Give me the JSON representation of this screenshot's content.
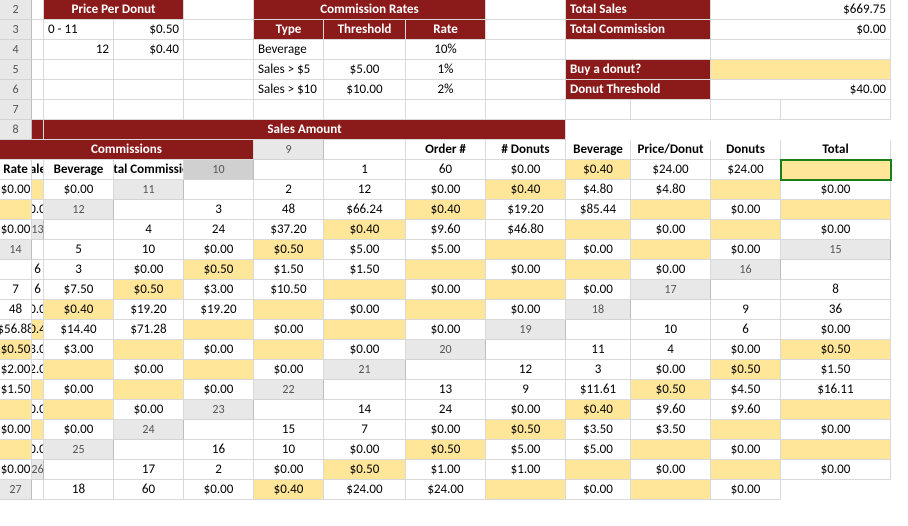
{
  "colors": {
    "headerBg": "#8b1a1a",
    "headerFg": "#ffffff",
    "highlight": "#ffe699",
    "rowHdrBg": "#e8e8e8",
    "rowHdrBorder": "#bdbdbd",
    "cellBorder": "#d9d9d9",
    "activeOutline": "#1a7f1a"
  },
  "rowNumbers": [
    2,
    3,
    4,
    5,
    6,
    7,
    8,
    9,
    10,
    11,
    12,
    13,
    14,
    15,
    16,
    17,
    18,
    19,
    20,
    21,
    22,
    23,
    24,
    25,
    26,
    27
  ],
  "activeRowIndex": 10,
  "pricePerDonut": {
    "title": "Price Per Donut",
    "rows": [
      {
        "range": "0 - 11",
        "price": "$0.50"
      },
      {
        "range": "12",
        "price": "$0.40"
      }
    ]
  },
  "commissionRates": {
    "title": "Commission Rates",
    "headers": {
      "type": "Type",
      "threshold": "Threshold",
      "rate": "Rate"
    },
    "rows": [
      {
        "type": "Beverage",
        "threshold": "",
        "rate": "10%"
      },
      {
        "type": "Sales > $5",
        "threshold": "$5.00",
        "rate": "1%"
      },
      {
        "type": "Sales > $10",
        "threshold": "$10.00",
        "rate": "2%"
      }
    ]
  },
  "summary": {
    "totalSalesLabel": "Total Sales",
    "totalSalesValue": "$669.75",
    "totalCommissionLabel": "Total Commission",
    "totalCommissionValue": "$0.00",
    "buyDonutLabel": "Buy a donut?",
    "donutThresholdLabel": "Donut Threshold",
    "donutThresholdValue": "$40.00"
  },
  "dataHeaders": {
    "salesAmount": "Sales Amount",
    "commissions": "Commissions",
    "order": "Order #",
    "donuts": "# Donuts",
    "beverage": "Beverage",
    "pricePer": "Price/Donut",
    "donutsAmt": "Donuts",
    "total": "Total",
    "rate": "Rate",
    "sales": "Sales",
    "bev2": "Beverage",
    "totComm": "Total Commission"
  },
  "dataRows": [
    {
      "o": "1",
      "d": "60",
      "bev": "$0.00",
      "pp": "$0.40",
      "da": "$24.00",
      "t": "$24.00",
      "r": "",
      "s": "$0.00",
      "b2": "",
      "tc": "$0.00"
    },
    {
      "o": "2",
      "d": "12",
      "bev": "$0.00",
      "pp": "$0.40",
      "da": "$4.80",
      "t": "$4.80",
      "r": "",
      "s": "$0.00",
      "b2": "",
      "tc": "$0.00"
    },
    {
      "o": "3",
      "d": "48",
      "bev": "$66.24",
      "pp": "$0.40",
      "da": "$19.20",
      "t": "$85.44",
      "r": "",
      "s": "$0.00",
      "b2": "",
      "tc": "$0.00"
    },
    {
      "o": "4",
      "d": "24",
      "bev": "$37.20",
      "pp": "$0.40",
      "da": "$9.60",
      "t": "$46.80",
      "r": "",
      "s": "$0.00",
      "b2": "",
      "tc": "$0.00"
    },
    {
      "o": "5",
      "d": "10",
      "bev": "$0.00",
      "pp": "$0.50",
      "da": "$5.00",
      "t": "$5.00",
      "r": "",
      "s": "$0.00",
      "b2": "",
      "tc": "$0.00"
    },
    {
      "o": "6",
      "d": "3",
      "bev": "$0.00",
      "pp": "$0.50",
      "da": "$1.50",
      "t": "$1.50",
      "r": "",
      "s": "$0.00",
      "b2": "",
      "tc": "$0.00"
    },
    {
      "o": "7",
      "d": "6",
      "bev": "$7.50",
      "pp": "$0.50",
      "da": "$3.00",
      "t": "$10.50",
      "r": "",
      "s": "$0.00",
      "b2": "",
      "tc": "$0.00"
    },
    {
      "o": "8",
      "d": "48",
      "bev": "$0.00",
      "pp": "$0.40",
      "da": "$19.20",
      "t": "$19.20",
      "r": "",
      "s": "$0.00",
      "b2": "",
      "tc": "$0.00"
    },
    {
      "o": "9",
      "d": "36",
      "bev": "$56.88",
      "pp": "$0.40",
      "da": "$14.40",
      "t": "$71.28",
      "r": "",
      "s": "$0.00",
      "b2": "",
      "tc": "$0.00"
    },
    {
      "o": "10",
      "d": "6",
      "bev": "$0.00",
      "pp": "$0.50",
      "da": "$3.00",
      "t": "$3.00",
      "r": "",
      "s": "$0.00",
      "b2": "",
      "tc": "$0.00"
    },
    {
      "o": "11",
      "d": "4",
      "bev": "$0.00",
      "pp": "$0.50",
      "da": "$2.00",
      "t": "$2.00",
      "r": "",
      "s": "$0.00",
      "b2": "",
      "tc": "$0.00"
    },
    {
      "o": "12",
      "d": "3",
      "bev": "$0.00",
      "pp": "$0.50",
      "da": "$1.50",
      "t": "$1.50",
      "r": "",
      "s": "$0.00",
      "b2": "",
      "tc": "$0.00"
    },
    {
      "o": "13",
      "d": "9",
      "bev": "$11.61",
      "pp": "$0.50",
      "da": "$4.50",
      "t": "$16.11",
      "r": "",
      "s": "$0.00",
      "b2": "",
      "tc": "$0.00"
    },
    {
      "o": "14",
      "d": "24",
      "bev": "$0.00",
      "pp": "$0.40",
      "da": "$9.60",
      "t": "$9.60",
      "r": "",
      "s": "$0.00",
      "b2": "",
      "tc": "$0.00"
    },
    {
      "o": "15",
      "d": "7",
      "bev": "$0.00",
      "pp": "$0.50",
      "da": "$3.50",
      "t": "$3.50",
      "r": "",
      "s": "$0.00",
      "b2": "",
      "tc": "$0.00"
    },
    {
      "o": "16",
      "d": "10",
      "bev": "$0.00",
      "pp": "$0.50",
      "da": "$5.00",
      "t": "$5.00",
      "r": "",
      "s": "$0.00",
      "b2": "",
      "tc": "$0.00"
    },
    {
      "o": "17",
      "d": "2",
      "bev": "$0.00",
      "pp": "$0.50",
      "da": "$1.00",
      "t": "$1.00",
      "r": "",
      "s": "$0.00",
      "b2": "",
      "tc": "$0.00"
    },
    {
      "o": "18",
      "d": "60",
      "bev": "$0.00",
      "pp": "$0.40",
      "da": "$24.00",
      "t": "$24.00",
      "r": "",
      "s": "$0.00",
      "b2": "",
      "tc": "$0.00"
    }
  ]
}
